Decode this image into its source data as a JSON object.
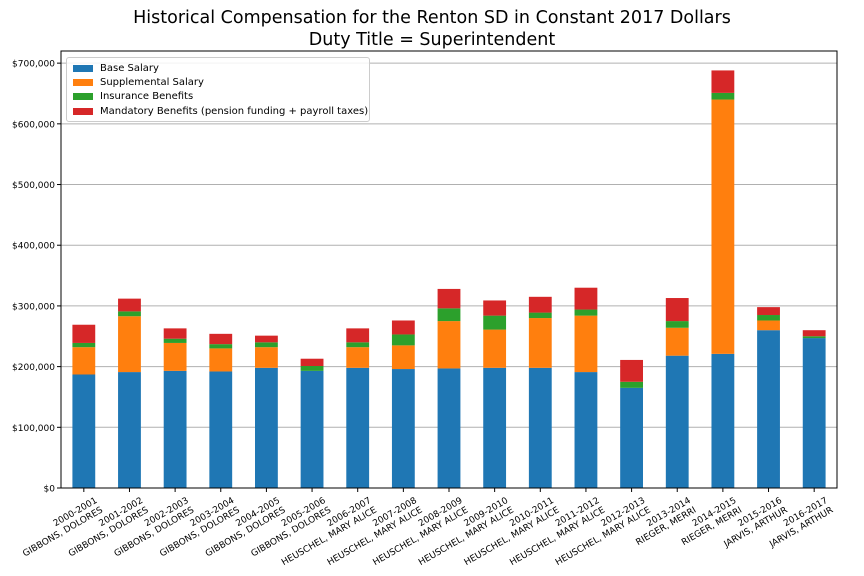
{
  "chart_data": {
    "type": "bar",
    "stacked": true,
    "title": "Historical Compensation for the Renton SD in Constant 2017 Dollars",
    "subtitle": "Duty Title = Superintendent",
    "xlabel": "",
    "ylabel": "",
    "ylim": [
      0,
      720000
    ],
    "yticks": [
      "$0",
      "$100,000",
      "$200,000",
      "$300,000",
      "$400,000",
      "$500,000",
      "$600,000",
      "$700,000"
    ],
    "ytick_values": [
      0,
      100000,
      200000,
      300000,
      400000,
      500000,
      600000,
      700000
    ],
    "grid": "horizontal",
    "legend_position": "top-left",
    "categories": [
      [
        "2000-2001",
        "GIBBONS, DOLORES"
      ],
      [
        "2001-2002",
        "GIBBONS, DOLORES"
      ],
      [
        "2002-2003",
        "GIBBONS, DOLORES"
      ],
      [
        "2003-2004",
        "GIBBONS, DOLORES"
      ],
      [
        "2004-2005",
        "GIBBONS, DOLORES"
      ],
      [
        "2005-2006",
        "GIBBONS, DOLORES"
      ],
      [
        "2006-2007",
        "HEUSCHEL, MARY ALICE"
      ],
      [
        "2007-2008",
        "HEUSCHEL, MARY ALICE"
      ],
      [
        "2008-2009",
        "HEUSCHEL, MARY ALICE"
      ],
      [
        "2009-2010",
        "HEUSCHEL, MARY ALICE"
      ],
      [
        "2010-2011",
        "HEUSCHEL, MARY ALICE"
      ],
      [
        "2011-2012",
        "HEUSCHEL, MARY ALICE"
      ],
      [
        "2012-2013",
        "HEUSCHEL, MARY ALICE"
      ],
      [
        "2013-2014",
        "RIEGER, MERRI"
      ],
      [
        "2014-2015",
        "RIEGER, MERRI"
      ],
      [
        "2015-2016",
        "JARVIS, ARTHUR"
      ],
      [
        "2016-2017",
        "JARVIS, ARTHUR"
      ]
    ],
    "series": [
      {
        "name": "Base Salary",
        "color": "#1f77b4",
        "values": [
          187000,
          191000,
          193000,
          192000,
          198000,
          193000,
          198000,
          196000,
          197000,
          198000,
          198000,
          191000,
          165000,
          218000,
          221000,
          260000,
          247000
        ]
      },
      {
        "name": "Supplemental Salary",
        "color": "#ff7f0e",
        "values": [
          45000,
          92000,
          46000,
          38000,
          34000,
          0,
          34000,
          39000,
          78000,
          63000,
          82000,
          93000,
          0,
          46000,
          419000,
          16000,
          0
        ]
      },
      {
        "name": "Insurance Benefits",
        "color": "#2ca02c",
        "values": [
          7000,
          8000,
          7000,
          7000,
          8000,
          8000,
          8000,
          18000,
          21000,
          23000,
          9000,
          10000,
          10000,
          11000,
          11000,
          9000,
          3000
        ]
      },
      {
        "name": "Mandatory Benefits (pension funding + payroll taxes)",
        "color": "#d62728",
        "values": [
          30000,
          21000,
          17000,
          17000,
          11000,
          12000,
          23000,
          23000,
          32000,
          25000,
          26000,
          36000,
          36000,
          38000,
          37000,
          13000,
          10000
        ]
      }
    ]
  }
}
